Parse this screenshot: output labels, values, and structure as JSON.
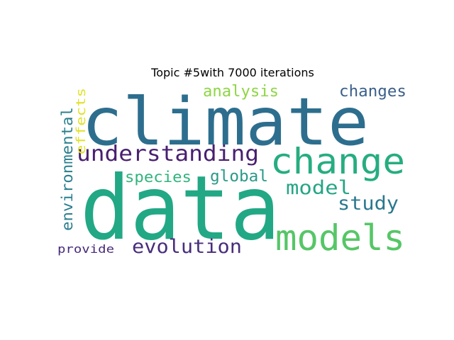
{
  "chart_data": {
    "type": "wordcloud",
    "title": "Topic #5with 7000 iterations",
    "words": [
      {
        "text": "climate",
        "weight": 1.0,
        "color": "#2d6e8e"
      },
      {
        "text": "data",
        "weight": 0.98,
        "color": "#22a884"
      },
      {
        "text": "change",
        "weight": 0.55,
        "color": "#26ad81"
      },
      {
        "text": "models",
        "weight": 0.52,
        "color": "#56c667"
      },
      {
        "text": "understanding",
        "weight": 0.34,
        "color": "#481f70"
      },
      {
        "text": "evolution",
        "weight": 0.3,
        "color": "#472d7b"
      },
      {
        "text": "model",
        "weight": 0.3,
        "color": "#25a584"
      },
      {
        "text": "study",
        "weight": 0.3,
        "color": "#2a788e"
      },
      {
        "text": "changes",
        "weight": 0.25,
        "color": "#3b5f8a"
      },
      {
        "text": "analysis",
        "weight": 0.25,
        "color": "#8ed645"
      },
      {
        "text": "global",
        "weight": 0.25,
        "color": "#2a9a87"
      },
      {
        "text": "species",
        "weight": 0.24,
        "color": "#2fb47c"
      },
      {
        "text": "environmental",
        "weight": 0.24,
        "color": "#2a7f8e"
      },
      {
        "text": "effects",
        "weight": 0.2,
        "color": "#e1e22a"
      },
      {
        "text": "provide",
        "weight": 0.18,
        "color": "#472a7a"
      }
    ]
  }
}
